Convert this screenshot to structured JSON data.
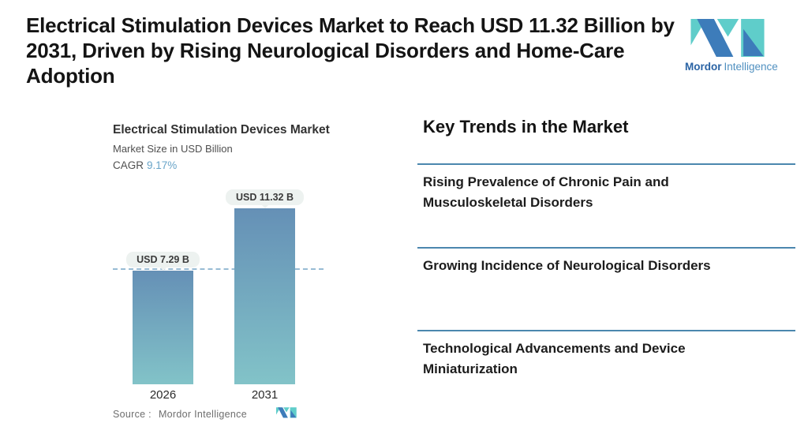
{
  "header": {
    "headline_lines": [
      "Electrical Stimulation Devices Market to Reach USD 11.32 Billion by",
      "2031, Driven by Rising Neurological Disorders and Home-Care",
      "Adoption"
    ],
    "logo": {
      "name_bold": "Mordor",
      "name_light": "Intelligence"
    }
  },
  "chart": {
    "title": "Electrical Stimulation Devices Market",
    "subtitle": "Market Size in USD Billion",
    "cagr_label": "CAGR",
    "cagr_value": "9.17%",
    "bars": [
      {
        "year": "2026",
        "label": "USD 7.29 B"
      },
      {
        "year": "2031",
        "label": "USD 11.32 B"
      }
    ],
    "source_label": "Source :",
    "source_value": "Mordor Intelligence"
  },
  "chart_data": {
    "type": "bar",
    "title": "Electrical Stimulation Devices Market",
    "subtitle": "Market Size in USD Billion",
    "cagr": "9.17%",
    "categories": [
      "2026",
      "2031"
    ],
    "values": [
      7.29,
      11.32
    ],
    "value_labels": [
      "USD 7.29 B",
      "USD 11.32 B"
    ],
    "unit": "USD Billion",
    "ylabel": "Market Size in USD Billion",
    "xlabel": "",
    "ylim": [
      0,
      12
    ],
    "grid": false,
    "legend": false,
    "dashed_reference_line_at": 7.29,
    "source": "Mordor Intelligence"
  },
  "trends": {
    "heading": "Key Trends in the Market",
    "items": [
      "Rising Prevalence of Chronic Pain and Musculoskeletal Disorders",
      "Growing Incidence of Neurological Disorders",
      "Technological Advancements and Device Miniaturization"
    ]
  },
  "colors": {
    "brand_blue": "#3d7cba",
    "brand_teal": "#5fcdca",
    "bar_gradient_top": "#6590b6",
    "bar_gradient_bottom": "#82c3c8",
    "dashed_line": "#97bbd4",
    "separator": "#4b87ae",
    "cagr_value": "#68a4c8",
    "pill_background": "#edf2f0"
  }
}
